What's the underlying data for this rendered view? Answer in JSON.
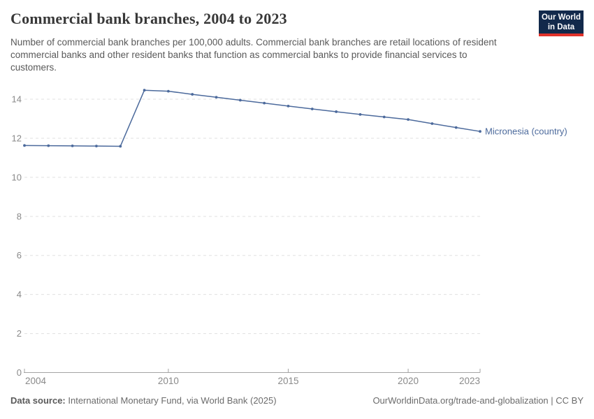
{
  "header": {
    "title": "Commercial bank branches, 2004 to 2023",
    "subtitle": "Number of commercial bank branches per 100,000 adults. Commercial bank branches are retail locations of resident commercial banks and other resident banks that function as commercial banks to provide financial services to customers.",
    "logo": {
      "line1": "Our World",
      "line2": "in Data",
      "bg_color": "#12294b",
      "accent_color": "#e0322b"
    }
  },
  "chart_data": {
    "type": "line",
    "title": "Commercial bank branches, 2004 to 2023",
    "x": [
      2004,
      2005,
      2006,
      2007,
      2008,
      2009,
      2010,
      2011,
      2012,
      2013,
      2014,
      2015,
      2016,
      2017,
      2018,
      2019,
      2020,
      2021,
      2022,
      2023
    ],
    "series": [
      {
        "name": "Micronesia (country)",
        "color": "#4c6a9c",
        "values": [
          11.63,
          11.62,
          11.61,
          11.6,
          11.59,
          14.46,
          14.41,
          14.25,
          14.1,
          13.95,
          13.8,
          13.65,
          13.5,
          13.36,
          13.22,
          13.09,
          12.96,
          12.75,
          12.55,
          12.35
        ]
      }
    ],
    "xlabel": "",
    "ylabel": "",
    "xlim": [
      2004,
      2023
    ],
    "ylim": [
      0,
      14
    ],
    "y_ticks": [
      0,
      2,
      4,
      6,
      8,
      10,
      12,
      14
    ],
    "x_ticks": [
      2004,
      2010,
      2015,
      2020,
      2023
    ],
    "grid": "horizontal-dashed",
    "legend_position": "end-of-line-label",
    "axis_color": "#a3a3a3",
    "grid_color": "#e0e0e0",
    "tick_label_color": "#8a8a8a"
  },
  "footer": {
    "source_label": "Data source:",
    "source_text": "International Monetary Fund, via World Bank (2025)",
    "link_text": "OurWorldinData.org/trade-and-globalization | CC BY"
  }
}
